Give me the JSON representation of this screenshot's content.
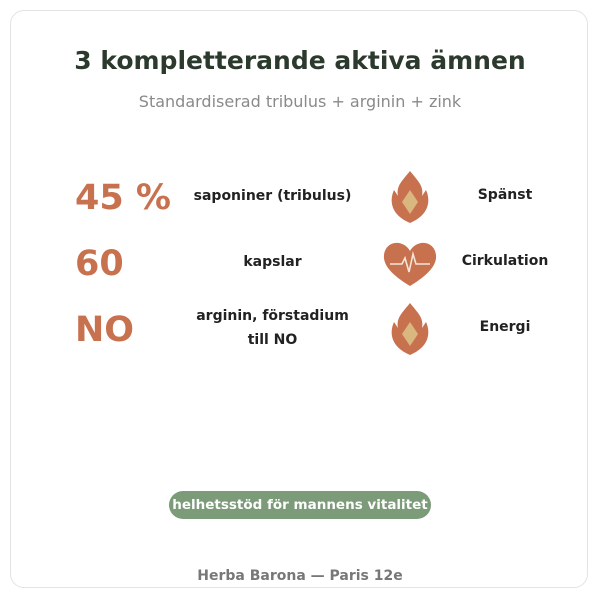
{
  "header": {
    "title": "3 kompletterande aktiva ämnen",
    "subtitle": "Standardiserad tribulus + arginin + zink"
  },
  "rows": [
    {
      "value": "45 %",
      "description": "saponiner (tribulus)",
      "benefit": "Spänst"
    },
    {
      "value": "60",
      "description": "kapslar",
      "benefit": "Cirkulation"
    },
    {
      "value": "NO",
      "description": "arginin, förstadium till NO",
      "benefit": "Energi"
    }
  ],
  "badge": "helhetsstöd för mannens vitalitet",
  "footer": "Herba Barona — Paris 12e"
}
